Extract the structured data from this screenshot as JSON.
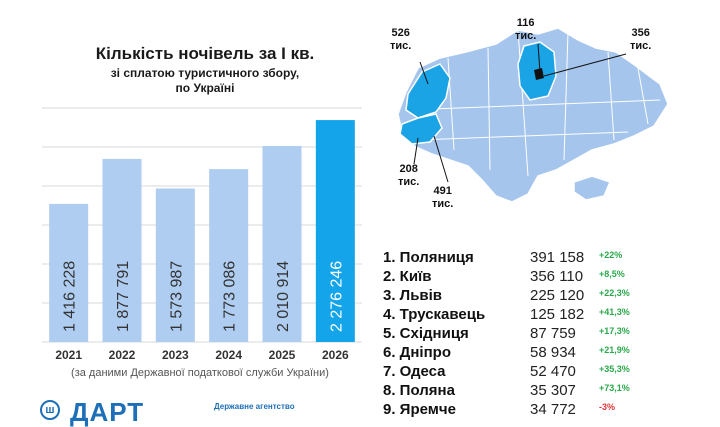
{
  "chart_title": "Кількість ночівель за І кв.",
  "chart_subtitle_line1": "зі сплатою туристичного збору,",
  "chart_subtitle_line2": "по Україні",
  "source_note": "(за даними Державної податкової служби України)",
  "logo": {
    "text": "ДАРТ",
    "caption": "Державне агентство"
  },
  "colors": {
    "bar": "#aecdf0",
    "bar_highlight": "#13a4ea",
    "map_base": "#a5c5ec",
    "map_highlight": "#1aa3e5",
    "grid": "#d9d9d9"
  },
  "chart_data": {
    "type": "bar",
    "title": "Кількість ночівель за І кв.",
    "subtitle": "зі сплатою туристичного збору, по Україні",
    "categories": [
      "2021",
      "2022",
      "2023",
      "2024",
      "2025",
      "2026"
    ],
    "values": [
      1416228,
      1877791,
      1573987,
      1773086,
      2010914,
      2276246
    ],
    "value_labels": [
      "1 416 228",
      "1 877 791",
      "1 573 987",
      "1 773 086",
      "2 010 914",
      "2 276 246"
    ],
    "highlight_index": 5,
    "ylim": [
      0,
      2400000
    ],
    "grid": true,
    "legend": "none",
    "xlabel": "",
    "ylabel": ""
  },
  "map_labels": {
    "lviv": "526\nтис.",
    "kyiv_city": "116\nтис.",
    "kyiv_region": "356\nтис.",
    "skhidnytsia": "208\nтис.",
    "truskavets": "491\nтис."
  },
  "ranking": [
    {
      "name": "1.  Поляниця",
      "value": "391 158",
      "change": "+22%",
      "trend": "pos"
    },
    {
      "name": "2. Київ",
      "value": "356 110",
      "change": "+8,5%",
      "trend": "pos"
    },
    {
      "name": "3. Львів",
      "value": "225 120",
      "change": "+22,3%",
      "trend": "pos"
    },
    {
      "name": "4. Трускавець",
      "value": "125 182",
      "change": "+41,3%",
      "trend": "pos"
    },
    {
      "name": "5. Східниця",
      "value": "87 759",
      "change": "+17,3%",
      "trend": "pos"
    },
    {
      "name": "6. Дніпро",
      "value": "58 934",
      "change": "+21,9%",
      "trend": "pos"
    },
    {
      "name": "7. Одеса",
      "value": "52 470",
      "change": "+35,3%",
      "trend": "pos"
    },
    {
      "name": "8. Поляна",
      "value": "35 307",
      "change": "+73,1%",
      "trend": "pos"
    },
    {
      "name": "9. Яремче",
      "value": "34 772",
      "change": "-3%",
      "trend": "neg"
    }
  ]
}
